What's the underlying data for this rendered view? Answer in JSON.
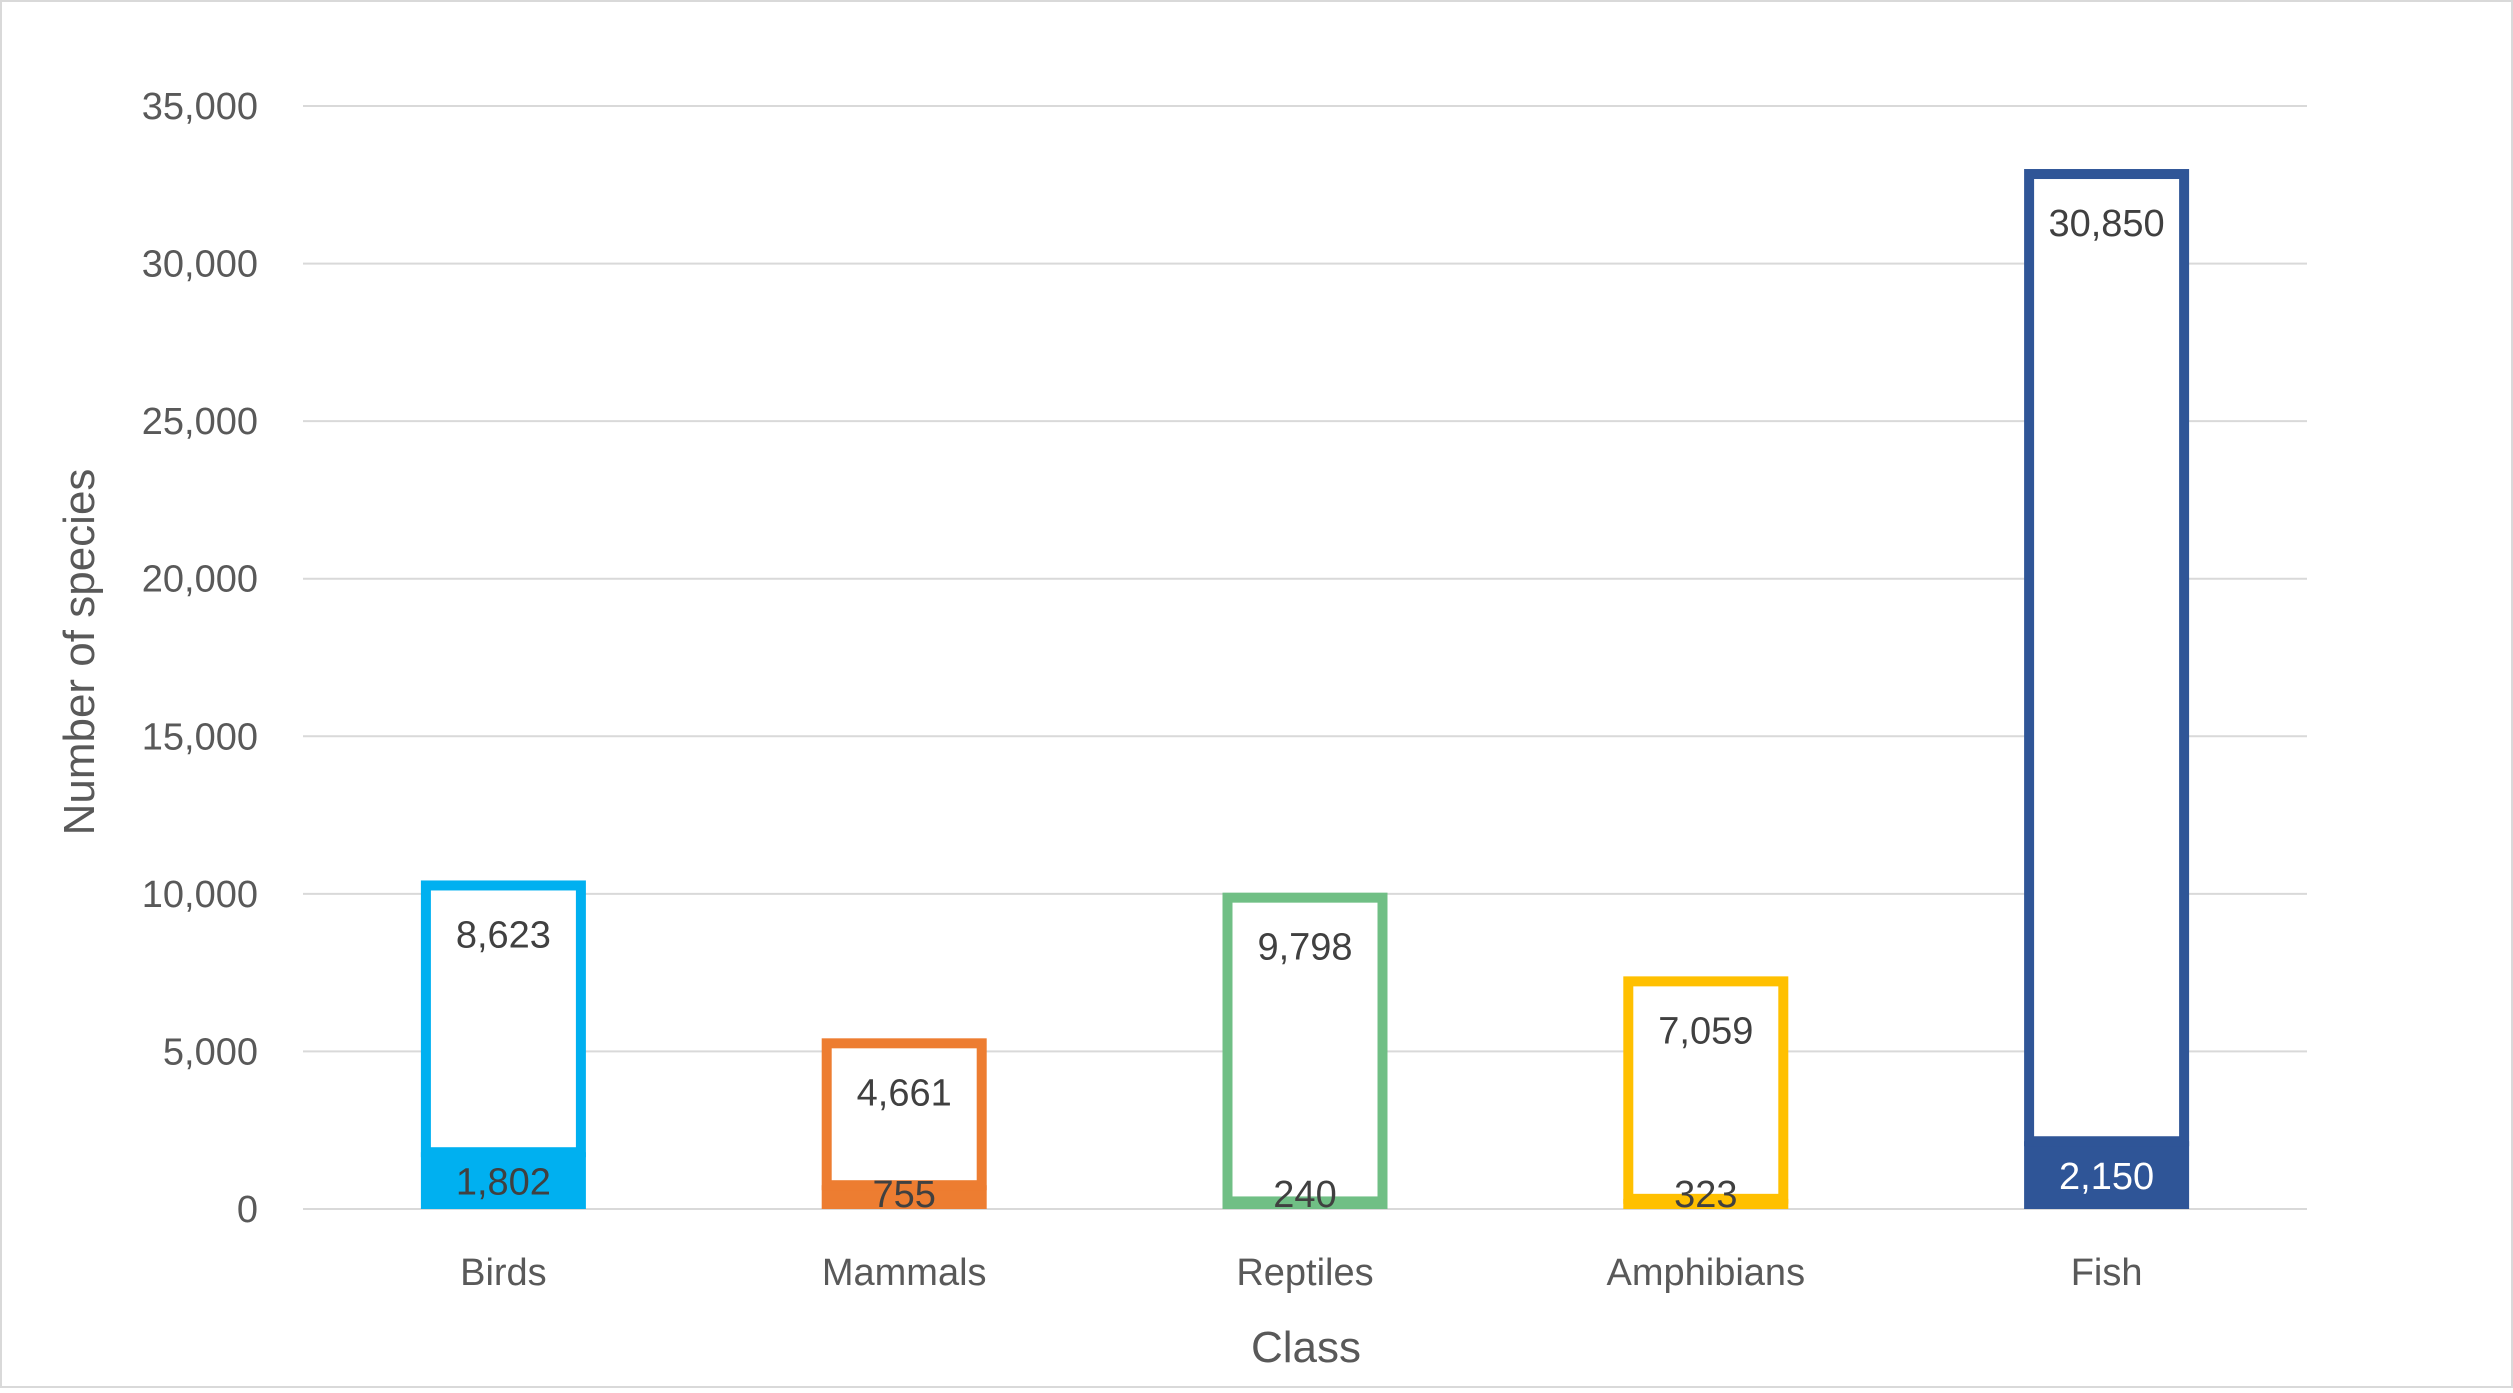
{
  "chart_data": {
    "type": "bar",
    "stacked": true,
    "categories": [
      "Birds",
      "Mammals",
      "Reptiles",
      "Amphibians",
      "Fish"
    ],
    "series": [
      {
        "values": [
          1802,
          755,
          240,
          323,
          2150
        ],
        "style": "filled"
      },
      {
        "values": [
          8623,
          4661,
          9798,
          7059,
          30850
        ],
        "style": "outlined"
      }
    ],
    "colors": [
      "#00b0f0",
      "#ed7d31",
      "#70bf85",
      "#ffc000",
      "#2f5597"
    ],
    "xlabel": "Class",
    "ylabel": "Number of species",
    "ylim": [
      0,
      35000
    ],
    "yticks": [
      "0",
      "5,000",
      "10,000",
      "15,000",
      "20,000",
      "25,000",
      "30,000",
      "35,000"
    ],
    "data_labels": {
      "filled": [
        "1,802",
        "755",
        "240",
        "323",
        "2,150"
      ],
      "outlined": [
        "8,623",
        "4,661",
        "9,798",
        "7,059",
        "30,850"
      ]
    },
    "grid": true,
    "legend": "none"
  }
}
